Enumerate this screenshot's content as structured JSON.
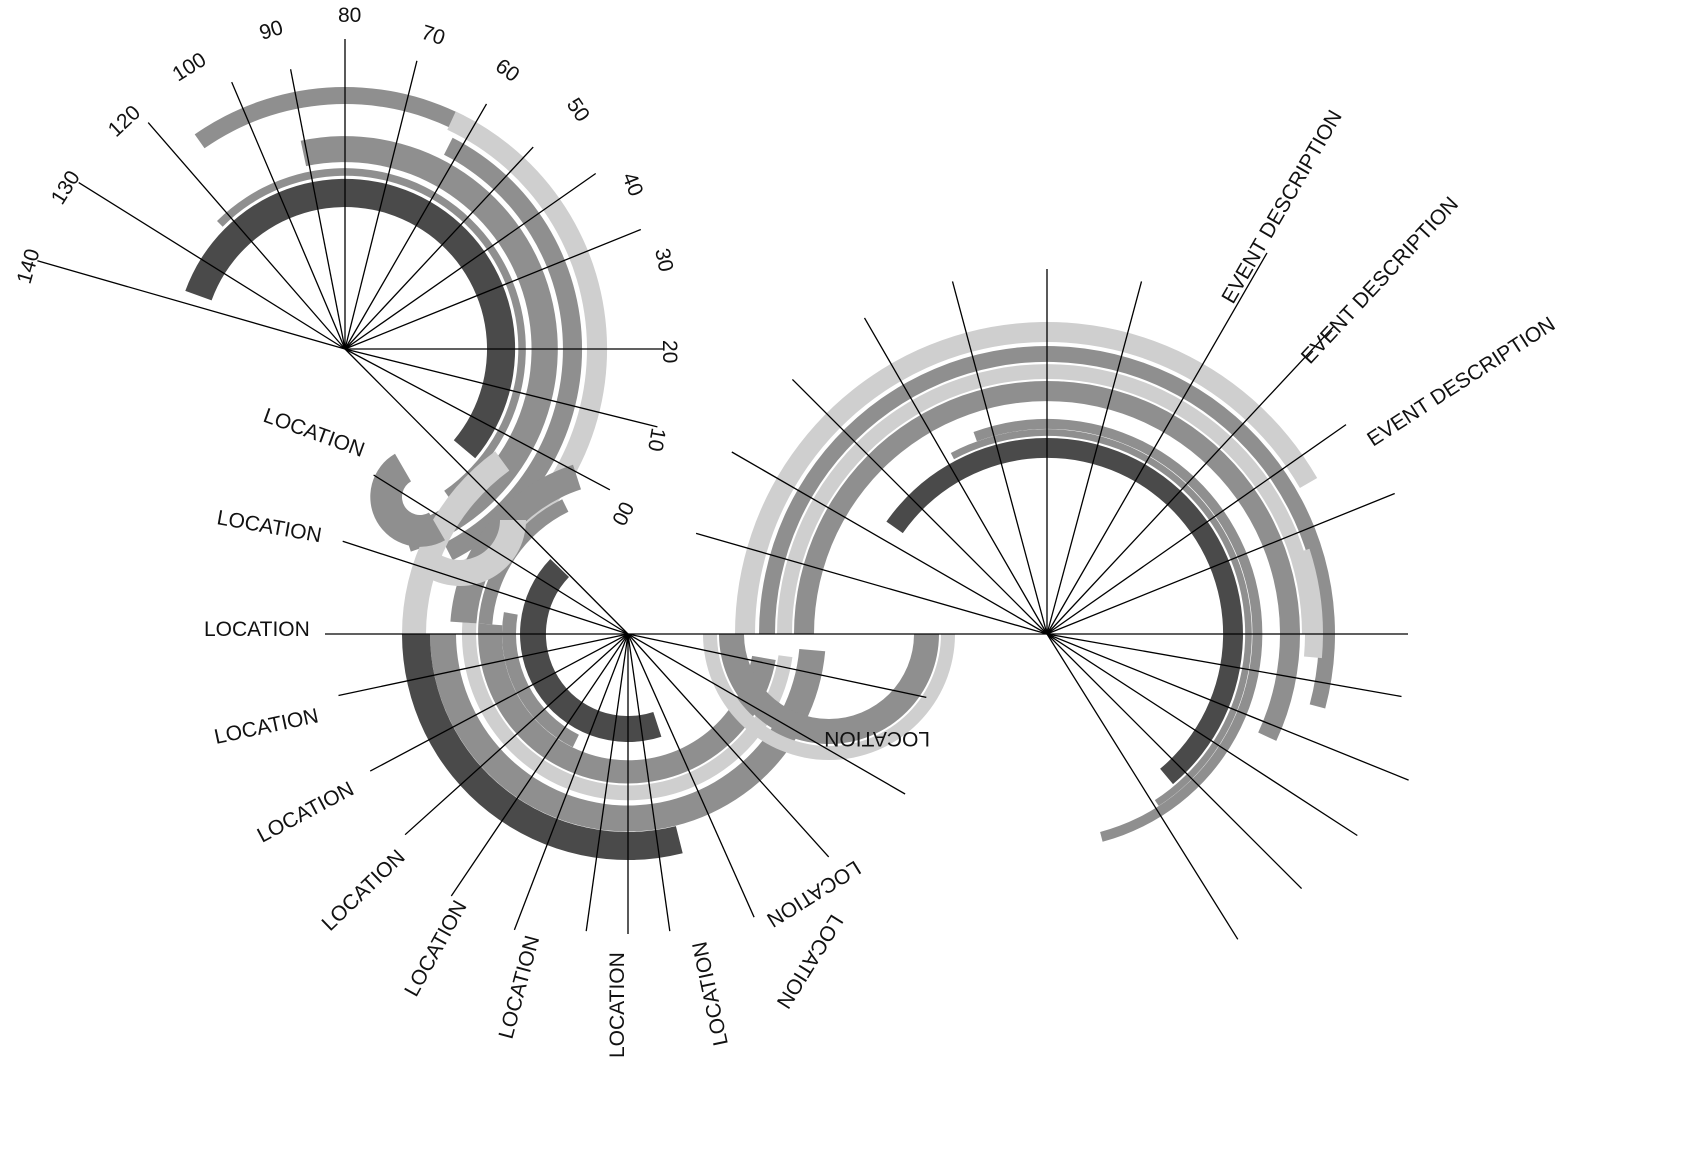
{
  "colors": {
    "dark": "#4a4a4a",
    "medium": "#8f8f8f",
    "light": "#cfcfcf",
    "line": "#000000",
    "background": "#ffffff"
  },
  "scale_labels": [
    "140",
    "130",
    "120",
    "100",
    "90",
    "80",
    "70",
    "60",
    "50",
    "40",
    "30",
    "20",
    "10",
    "00"
  ],
  "location_labels": [
    "LOCATION",
    "LOCATION",
    "LOCATION",
    "LOCATION",
    "LOCATION",
    "LOCATION",
    "LOCATION",
    "LOCATION",
    "LOCATION",
    "LOCATION",
    "LOCATION",
    "LOCATION",
    "LOCATION"
  ],
  "event_labels": [
    "EVENT DESCRIPTION",
    "EVENT DESCRIPTION",
    "EVENT DESCRIPTION"
  ]
}
